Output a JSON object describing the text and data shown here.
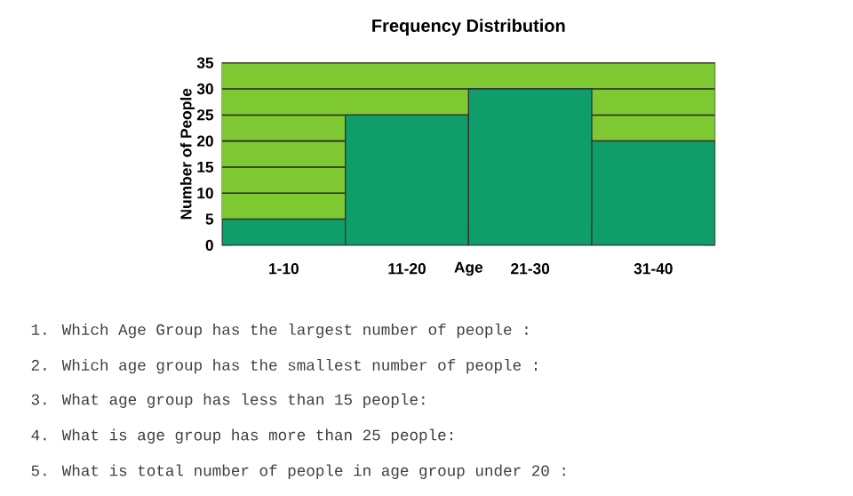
{
  "chart_data": {
    "type": "bar",
    "title": "Frequency Distribution",
    "xlabel": "Age",
    "ylabel": "Number of People",
    "categories": [
      "1-10",
      "11-20",
      "21-30",
      "31-40"
    ],
    "values": [
      5,
      25,
      30,
      20
    ],
    "color": "#0f9e6a",
    "bands": [
      {
        "axis": "y",
        "from": 0,
        "to": 35,
        "color": "#7ec832"
      }
    ],
    "ylim": [
      0,
      35
    ],
    "yticks": [
      0,
      5,
      10,
      15,
      20,
      25,
      30,
      35
    ],
    "grid": "y",
    "annotations": [
      "1. Which Age Group has the largest number of people :",
      "2. Which age group has the smallest number of people :",
      "3. What age group has less than 15 people:",
      "4. What is age group has more than 25 people:",
      "5. What is total number of people in age group under 20 :"
    ]
  }
}
